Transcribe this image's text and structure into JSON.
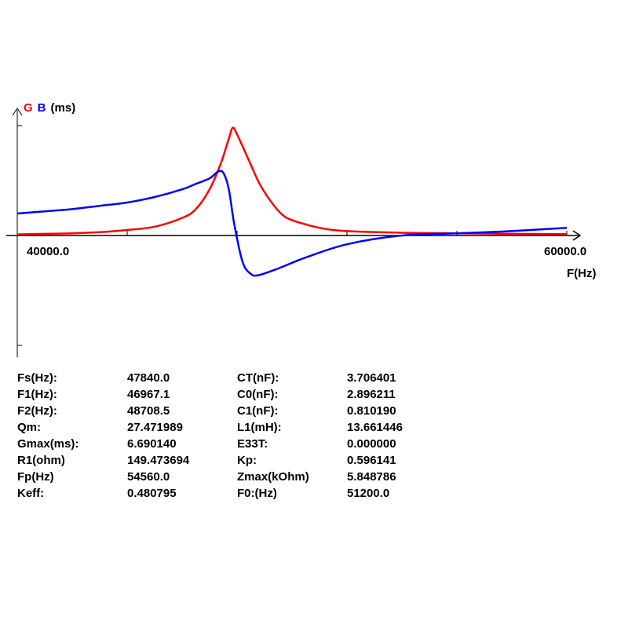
{
  "legend": {
    "g": "G",
    "b": "B",
    "unit": "(ms)"
  },
  "chart_data": {
    "type": "line",
    "x_axis_label": "F(Hz)",
    "x_tick_labels": [
      "40000.0",
      "60000.0"
    ],
    "xlim": [
      40000,
      60000
    ],
    "ylim": [
      -1.0,
      1.0
    ],
    "grid": false,
    "series": [
      {
        "name": "G",
        "color": "#ff0000",
        "x": [
          40000,
          41000,
          42000,
          43000,
          44000,
          45000,
          46000,
          46500,
          47000,
          47400,
          47700,
          47840,
          48000,
          48400,
          48800,
          49200,
          49600,
          50000,
          51000,
          52000,
          54000,
          56000,
          58000,
          60000
        ],
        "y": [
          0.01,
          0.015,
          0.02,
          0.03,
          0.05,
          0.08,
          0.16,
          0.24,
          0.42,
          0.65,
          0.88,
          0.98,
          0.92,
          0.7,
          0.48,
          0.32,
          0.2,
          0.14,
          0.07,
          0.04,
          0.025,
          0.02,
          0.015,
          0.013
        ]
      },
      {
        "name": "B",
        "color": "#0000ff",
        "x": [
          40000,
          41000,
          42000,
          43000,
          44000,
          45000,
          46000,
          46500,
          47000,
          47300,
          47500,
          47700,
          47900,
          48200,
          48500,
          48800,
          49500,
          50500,
          52000,
          54000,
          56000,
          58000,
          60000
        ],
        "y": [
          0.2,
          0.22,
          0.24,
          0.27,
          0.3,
          0.35,
          0.42,
          0.47,
          0.52,
          0.58,
          0.57,
          0.42,
          0.1,
          -0.24,
          -0.35,
          -0.36,
          -0.3,
          -0.2,
          -0.08,
          0.0,
          0.02,
          0.04,
          0.07
        ]
      }
    ]
  },
  "params": [
    {
      "k1": "Fs(Hz):",
      "v1": "47840.0",
      "k2": "CT(nF):",
      "v2": "3.706401"
    },
    {
      "k1": "F1(Hz):",
      "v1": "46967.1",
      "k2": "C0(nF):",
      "v2": "2.896211"
    },
    {
      "k1": "F2(Hz):",
      "v1": "48708.5",
      "k2": "C1(nF):",
      "v2": "0.810190"
    },
    {
      "k1": "Qm:",
      "v1": "27.471989",
      "k2": "L1(mH):",
      "v2": "13.661446"
    },
    {
      "k1": "Gmax(ms):",
      "v1": "6.690140",
      "k2": "E33T:",
      "v2": "0.000000"
    },
    {
      "k1": "R1(ohm)",
      "v1": "149.473694",
      "k2": "Kp:",
      "v2": "0.596141"
    },
    {
      "k1": "Fp(Hz)",
      "v1": "54560.0",
      "k2": "Zmax(kOhm)",
      "v2": "5.848786"
    },
    {
      "k1": "Keff:",
      "v1": "0.480795",
      "k2": "F0:(Hz)",
      "v2": "51200.0"
    }
  ]
}
